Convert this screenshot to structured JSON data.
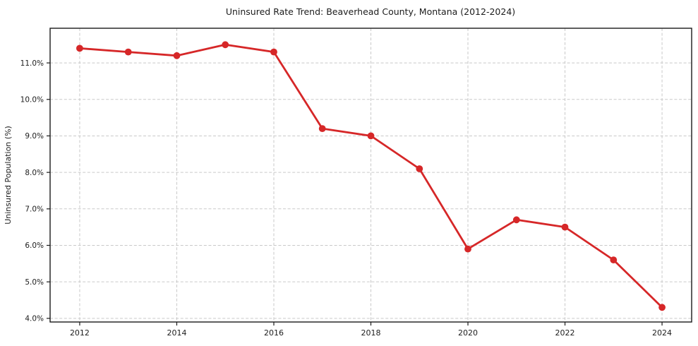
{
  "figure": {
    "title": "Uninsured Rate Trend: Beaverhead County, Montana (2012-2024)"
  },
  "chart_data": {
    "type": "line",
    "title": "Uninsured Rate Trend: Beaverhead County, Montana (2012-2024)",
    "xlabel": "",
    "ylabel": "Uninsured Population (%)",
    "x": [
      2012,
      2013,
      2014,
      2015,
      2016,
      2017,
      2018,
      2019,
      2020,
      2021,
      2022,
      2023,
      2024
    ],
    "values": [
      11.4,
      11.3,
      11.2,
      11.5,
      11.3,
      9.2,
      9.0,
      8.1,
      5.9,
      6.7,
      6.5,
      5.6,
      4.3
    ],
    "x_ticks": [
      2012,
      2014,
      2016,
      2018,
      2020,
      2022,
      2024
    ],
    "x_tick_labels": [
      "2012",
      "2014",
      "2016",
      "2018",
      "2020",
      "2022",
      "2024"
    ],
    "y_ticks": [
      4,
      5,
      6,
      7,
      8,
      9,
      10,
      11
    ],
    "y_tick_labels": [
      "4.0%",
      "5.0%",
      "6.0%",
      "7.0%",
      "8.0%",
      "9.0%",
      "10.0%",
      "11.0%"
    ],
    "xlim": [
      2011.39,
      2024.61
    ],
    "ylim": [
      3.9,
      11.95
    ],
    "grid": true,
    "grid_style": "dashed",
    "legend": "none",
    "line_color": "#d62728",
    "marker": "circle",
    "marker_color": "#d62728",
    "grid_color": "#c9c9c9",
    "frame_color": "#1a1a1a",
    "background": "#ffffff"
  }
}
